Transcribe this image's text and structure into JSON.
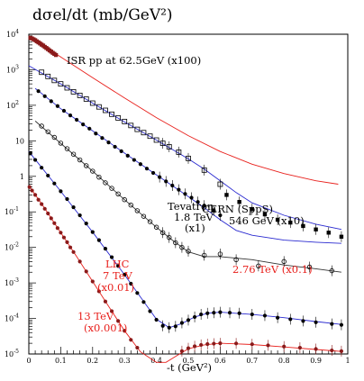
{
  "chart_data": {
    "type": "scatter",
    "title": "dσel/dt  (mb/GeV²)",
    "xlabel": "-t  (GeV²)",
    "ylabel": "",
    "xlim": [
      0,
      1
    ],
    "ylim": [
      1e-05,
      10000
    ],
    "yscale": "log",
    "x_ticks": [
      "0",
      "0.1",
      "0.2",
      "0.3",
      "0.4",
      "0.5",
      "0.6",
      "0.7",
      "0.8",
      "0.9",
      "1"
    ],
    "y_ticks": [
      {
        "base": "10",
        "exp": "4"
      },
      {
        "base": "10",
        "exp": "3"
      },
      {
        "base": "10",
        "exp": "2"
      },
      {
        "base": "10",
        "exp": ""
      },
      {
        "base": "1",
        "exp": ""
      },
      {
        "base": "10",
        "exp": "-1"
      },
      {
        "base": "10",
        "exp": "-2"
      },
      {
        "base": "10",
        "exp": "-3"
      },
      {
        "base": "10",
        "exp": "-4"
      },
      {
        "base": "10",
        "exp": "-5"
      }
    ],
    "annotations": {
      "isr": "ISR pp at 62.5GeV   (x100)",
      "tev1": "Tevatron",
      "tev2": "1.8 TeV",
      "tev3": "(x1)",
      "cern1": "CERN (SppS)",
      "cern2": "546 GeV  (x10)",
      "lhc1": "LHC",
      "lhc2": "7 TeV",
      "lhc3": "(x0.01)",
      "tev276": "2.76 TeV (x0.1)",
      "tev13a": "13 TeV",
      "tev13b": "(x0.001)"
    },
    "colors": {
      "fit_red": "#e8201c",
      "fit_blue": "#2a2ad0",
      "fit_black": "#333333",
      "label_red": "#e8201c"
    },
    "series": [
      {
        "name": "ISR pp at 62.5GeV   (x100)",
        "marker": "filled-square",
        "color": "#8b1a1a",
        "x": [
          0.005,
          0.01,
          0.015,
          0.02,
          0.025,
          0.03,
          0.035,
          0.04,
          0.045,
          0.05,
          0.055,
          0.06,
          0.065,
          0.07,
          0.075,
          0.08,
          0.085
        ],
        "y": [
          7900,
          7600,
          7200,
          6800,
          6300,
          5900,
          5500,
          5100,
          4800,
          4400,
          4100,
          3800,
          3500,
          3250,
          3000,
          2800,
          2600
        ]
      },
      {
        "name": "CERN (SppS)  546 GeV  (x10)",
        "marker": "open-square",
        "color": "#000000",
        "x": [
          0.04,
          0.06,
          0.08,
          0.1,
          0.12,
          0.14,
          0.16,
          0.18,
          0.2,
          0.22,
          0.24,
          0.26,
          0.28,
          0.3,
          0.32,
          0.34,
          0.36,
          0.38,
          0.4,
          0.42,
          0.44,
          0.47,
          0.5,
          0.55,
          0.6
        ],
        "y": [
          850,
          650,
          500,
          400,
          310,
          240,
          190,
          150,
          115,
          90,
          72,
          56,
          44,
          35,
          27,
          21,
          17,
          13.5,
          10.5,
          8.5,
          6.8,
          4.8,
          3.2,
          1.5,
          0.6
        ]
      },
      {
        "name": "CERN (SppS)  546 GeV  (x10) — large |t|",
        "marker": "filled-square",
        "color": "#000000",
        "x": [
          0.62,
          0.66,
          0.7,
          0.74,
          0.78,
          0.82,
          0.86,
          0.9,
          0.94,
          0.98
        ],
        "y": [
          0.3,
          0.19,
          0.12,
          0.085,
          0.06,
          0.05,
          0.04,
          0.032,
          0.026,
          0.02
        ]
      },
      {
        "name": "Tevatron  1.8 TeV  (x1)",
        "marker": "filled-circle",
        "color": "#000000",
        "x": [
          0.03,
          0.05,
          0.07,
          0.09,
          0.11,
          0.13,
          0.15,
          0.17,
          0.19,
          0.21,
          0.23,
          0.25,
          0.27,
          0.29,
          0.31,
          0.33,
          0.35,
          0.37,
          0.39,
          0.41,
          0.43,
          0.45,
          0.47,
          0.49,
          0.51,
          0.53,
          0.55,
          0.58,
          0.6
        ],
        "y": [
          250,
          180,
          130,
          95,
          70,
          52,
          39,
          29,
          22,
          16,
          12,
          9,
          6.8,
          5.1,
          3.8,
          2.9,
          2.2,
          1.65,
          1.25,
          0.95,
          0.72,
          0.55,
          0.42,
          0.32,
          0.25,
          0.19,
          0.15,
          0.11,
          0.08
        ]
      },
      {
        "name": "2.76 TeV (x0.1)",
        "marker": "open-circle",
        "color": "#000000",
        "x": [
          0.04,
          0.06,
          0.08,
          0.1,
          0.12,
          0.14,
          0.16,
          0.18,
          0.2,
          0.22,
          0.24,
          0.26,
          0.28,
          0.3,
          0.32,
          0.34,
          0.36,
          0.38,
          0.4,
          0.42,
          0.44,
          0.46,
          0.48,
          0.5,
          0.55,
          0.6,
          0.65,
          0.72,
          0.8,
          0.88,
          0.95
        ],
        "y": [
          26,
          18,
          12.5,
          8.6,
          6,
          4.2,
          2.9,
          2.0,
          1.4,
          0.95,
          0.66,
          0.46,
          0.32,
          0.22,
          0.155,
          0.108,
          0.075,
          0.053,
          0.037,
          0.026,
          0.019,
          0.0135,
          0.01,
          0.0078,
          0.006,
          0.0065,
          0.0045,
          0.003,
          0.004,
          0.0028,
          0.0022
        ]
      },
      {
        "name": "LHC  7 TeV  (x0.01)",
        "marker": "filled-circle",
        "color": "#000000",
        "x": [
          0.005,
          0.02,
          0.04,
          0.06,
          0.08,
          0.1,
          0.12,
          0.14,
          0.16,
          0.18,
          0.2,
          0.22,
          0.24,
          0.26,
          0.28,
          0.3,
          0.32,
          0.34,
          0.36,
          0.38,
          0.4,
          0.42,
          0.44,
          0.46,
          0.48,
          0.5,
          0.52,
          0.54,
          0.56,
          0.58,
          0.6,
          0.63,
          0.66,
          0.7,
          0.74,
          0.78,
          0.82,
          0.86,
          0.9,
          0.95,
          0.98
        ],
        "y": [
          4.5,
          2.9,
          1.75,
          1.05,
          0.63,
          0.38,
          0.23,
          0.135,
          0.08,
          0.047,
          0.027,
          0.016,
          0.0092,
          0.0053,
          0.003,
          0.0017,
          0.00095,
          0.00052,
          0.00029,
          0.00016,
          9.2e-05,
          6.2e-05,
          5.5e-05,
          6e-05,
          7.5e-05,
          9e-05,
          0.00011,
          0.00013,
          0.00014,
          0.000145,
          0.00015,
          0.000145,
          0.00014,
          0.00013,
          0.00012,
          0.000105,
          9.5e-05,
          8.5e-05,
          7.8e-05,
          7e-05,
          6.6e-05
        ]
      },
      {
        "name": "13 TeV (x0.001)",
        "marker": "filled-circle",
        "color": "#8b1a1a",
        "x": [
          0.002,
          0.01,
          0.02,
          0.03,
          0.04,
          0.05,
          0.06,
          0.07,
          0.08,
          0.09,
          0.1,
          0.11,
          0.12,
          0.13,
          0.14,
          0.16,
          0.18,
          0.2,
          0.22,
          0.24,
          0.26,
          0.28,
          0.3,
          0.32,
          0.34,
          0.36,
          0.38,
          0.4,
          0.42,
          0.44,
          0.46,
          0.48,
          0.5,
          0.52,
          0.54,
          0.56,
          0.58,
          0.6,
          0.65,
          0.7,
          0.75,
          0.8,
          0.85,
          0.9,
          0.95,
          0.98
        ],
        "y": [
          0.5,
          0.4,
          0.3,
          0.22,
          0.165,
          0.122,
          0.09,
          0.066,
          0.048,
          0.035,
          0.026,
          0.019,
          0.014,
          0.01,
          0.0074,
          0.004,
          0.0021,
          0.0011,
          0.00058,
          0.0003,
          0.00016,
          8.5e-05,
          4.5e-05,
          2.5e-05,
          1.5e-05,
          9.5e-06,
          6.8e-06,
          5.8e-06,
          6.2e-06,
          7.5e-06,
          9.5e-06,
          1.2e-05,
          1.45e-05,
          1.65e-05,
          1.8e-05,
          1.9e-05,
          1.95e-05,
          2e-05,
          1.98e-05,
          1.88e-05,
          1.75e-05,
          1.62e-05,
          1.5e-05,
          1.38e-05,
          1.26e-05,
          1.2e-05
        ]
      },
      {
        "name": "ISR pp at 62.5GeV   (x100) fit",
        "marker": "line",
        "color": "#e8201c",
        "x": [
          0,
          0.1,
          0.2,
          0.3,
          0.4,
          0.5,
          0.6,
          0.7,
          0.8,
          0.9,
          0.97
        ],
        "y": [
          9000,
          2300,
          600,
          160,
          45,
          14,
          5,
          2.2,
          1.2,
          0.75,
          0.6
        ]
      },
      {
        "name": "CERN (SppS)  546 GeV  (x10) fit",
        "marker": "line",
        "color": "#2a2ad0",
        "x": [
          0,
          0.1,
          0.2,
          0.3,
          0.4,
          0.5,
          0.55,
          0.6,
          0.65,
          0.7,
          0.8,
          0.9,
          0.98
        ],
        "y": [
          1300,
          400,
          115,
          34,
          10.5,
          3.1,
          1.6,
          0.75,
          0.35,
          0.18,
          0.08,
          0.045,
          0.032
        ]
      },
      {
        "name": "Tevatron  1.8 TeV  (x1) fit",
        "marker": "line",
        "color": "#2a2ad0",
        "x": [
          0.02,
          0.1,
          0.2,
          0.3,
          0.4,
          0.5,
          0.55,
          0.6,
          0.65,
          0.7,
          0.8,
          0.9,
          0.98
        ],
        "y": [
          300,
          80,
          19,
          4.5,
          1.1,
          0.27,
          0.13,
          0.06,
          0.03,
          0.022,
          0.016,
          0.014,
          0.013
        ]
      },
      {
        "name": "2.76 TeV (x0.1) fit",
        "marker": "line",
        "color": "#333333",
        "x": [
          0.02,
          0.1,
          0.2,
          0.3,
          0.4,
          0.45,
          0.5,
          0.55,
          0.6,
          0.7,
          0.8,
          0.9,
          0.98
        ],
        "y": [
          36,
          8.5,
          1.4,
          0.22,
          0.037,
          0.016,
          0.0075,
          0.0055,
          0.0055,
          0.0045,
          0.0032,
          0.0025,
          0.002
        ]
      },
      {
        "name": "LHC  7 TeV  (x0.01) fit",
        "marker": "line",
        "color": "#2a2ad0",
        "x": [
          0,
          0.1,
          0.2,
          0.3,
          0.35,
          0.4,
          0.44,
          0.48,
          0.52,
          0.56,
          0.6,
          0.7,
          0.8,
          0.9,
          0.98
        ],
        "y": [
          5,
          0.38,
          0.027,
          0.0017,
          0.0004,
          9.5e-05,
          5.5e-05,
          7.2e-05,
          0.00011,
          0.00014,
          0.00015,
          0.00013,
          0.000105,
          8.2e-05,
          6.8e-05
        ]
      },
      {
        "name": "13 TeV (x0.001) fit",
        "marker": "line",
        "color": "#e8201c",
        "x": [
          0,
          0.05,
          0.1,
          0.15,
          0.2,
          0.25,
          0.3,
          0.35,
          0.4,
          0.43,
          0.46,
          0.5,
          0.55,
          0.6,
          0.7,
          0.8,
          0.9,
          0.98
        ],
        "y": [
          0.55,
          0.125,
          0.026,
          0.0055,
          0.0011,
          0.00022,
          4.5e-05,
          1.15e-05,
          5.8e-06,
          5.8e-06,
          8.5e-06,
          1.4e-05,
          1.8e-05,
          2e-05,
          1.85e-05,
          1.58e-05,
          1.34e-05,
          1.18e-05
        ]
      }
    ]
  }
}
